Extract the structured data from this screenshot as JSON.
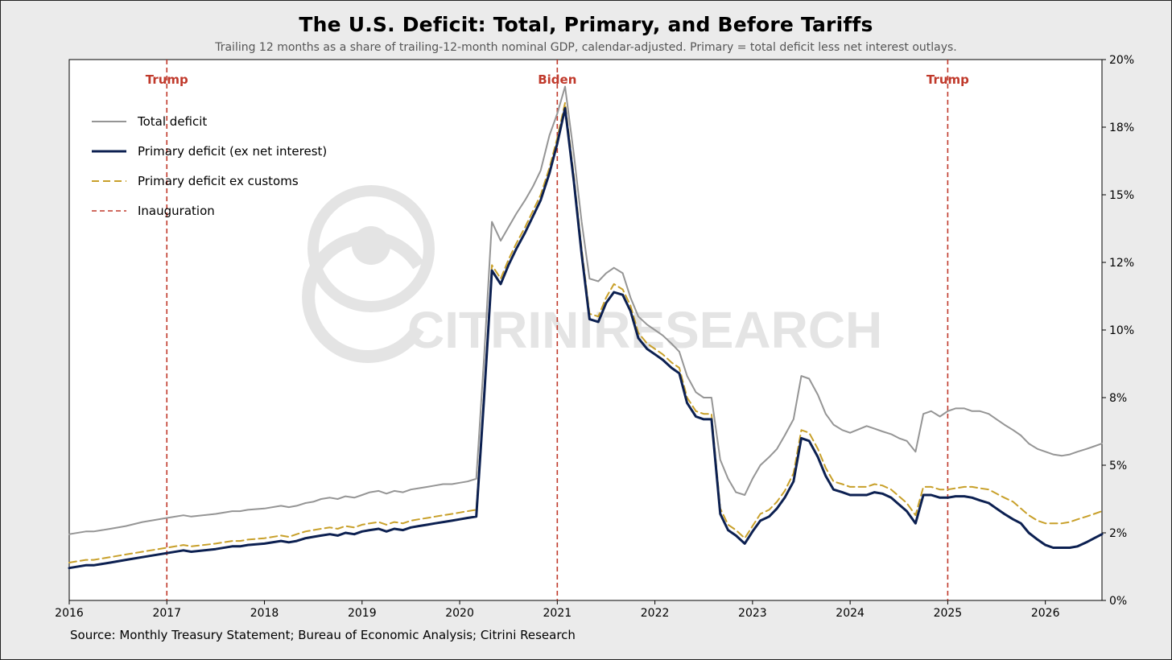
{
  "title": "The U.S. Deficit: Total, Primary, and Before Tariffs",
  "subtitle": "Trailing 12 months as a share of trailing-12-month nominal GDP, calendar-adjusted. Primary = total deficit less net interest outlays.",
  "source": "Source: Monthly Treasury Statement; Bureau of Economic Analysis; Citrini Research",
  "watermark": "CITRINIRESEARCH",
  "colors": {
    "total": "#959595",
    "primary": "#0c2051",
    "ex_customs": "#c8a02a",
    "inauguration": "#c0392b"
  },
  "chart_data": {
    "type": "line",
    "xlim": [
      2016.0,
      2026.58
    ],
    "ylim": [
      0,
      20
    ],
    "y_axis_side": "right",
    "x_ticks": [
      "2016",
      "2017",
      "2018",
      "2019",
      "2020",
      "2021",
      "2022",
      "2023",
      "2024",
      "2025",
      "2026"
    ],
    "y_ticks": [
      "0%",
      "2%",
      "5%",
      "8%",
      "10%",
      "12%",
      "15%",
      "18%",
      "20%"
    ],
    "y_tick_values": [
      0,
      2.5,
      5,
      7.5,
      10,
      12.5,
      15,
      17.5,
      20
    ],
    "legend_position": "top-left",
    "vlines": [
      {
        "x": 2017.0,
        "label": "Trump"
      },
      {
        "x": 2021.0,
        "label": "Biden"
      },
      {
        "x": 2025.0,
        "label": "Trump"
      }
    ],
    "series": [
      {
        "name": "Total deficit",
        "style": "solid",
        "x": [
          2016.0,
          2016.17,
          2016.25,
          2016.42,
          2016.58,
          2016.75,
          2017.0,
          2017.17,
          2017.25,
          2017.5,
          2017.67,
          2017.75,
          2017.83,
          2018.0,
          2018.17,
          2018.25,
          2018.33,
          2018.42,
          2018.5,
          2018.58,
          2018.67,
          2018.75,
          2018.83,
          2018.92,
          2019.0,
          2019.08,
          2019.17,
          2019.25,
          2019.33,
          2019.42,
          2019.5,
          2019.58,
          2019.67,
          2019.75,
          2019.83,
          2019.92,
          2020.0,
          2020.08,
          2020.17,
          2020.25,
          2020.33,
          2020.42,
          2020.5,
          2020.58,
          2020.67,
          2020.75,
          2020.83,
          2020.92,
          2021.0,
          2021.08,
          2021.17,
          2021.25,
          2021.33,
          2021.42,
          2021.5,
          2021.58,
          2021.67,
          2021.75,
          2021.83,
          2021.92,
          2022.0,
          2022.08,
          2022.17,
          2022.25,
          2022.33,
          2022.42,
          2022.5,
          2022.58,
          2022.67,
          2022.75,
          2022.83,
          2022.92,
          2023.0,
          2023.08,
          2023.17,
          2023.25,
          2023.33,
          2023.42,
          2023.5,
          2023.58,
          2023.67,
          2023.75,
          2023.83,
          2023.92,
          2024.0,
          2024.17,
          2024.25,
          2024.33,
          2024.42,
          2024.5,
          2024.58,
          2024.67,
          2024.75,
          2024.83,
          2024.92,
          2025.0,
          2025.08,
          2025.17,
          2025.25,
          2025.33,
          2025.42,
          2025.5,
          2025.58,
          2025.67,
          2025.75,
          2025.83,
          2025.92,
          2026.0,
          2026.08,
          2026.17,
          2026.25,
          2026.33,
          2026.42,
          2026.5,
          2026.58
        ],
        "values": [
          2.45,
          2.55,
          2.55,
          2.65,
          2.75,
          2.9,
          3.05,
          3.15,
          3.1,
          3.2,
          3.3,
          3.3,
          3.35,
          3.4,
          3.5,
          3.45,
          3.5,
          3.6,
          3.65,
          3.75,
          3.8,
          3.75,
          3.85,
          3.8,
          3.9,
          4.0,
          4.05,
          3.95,
          4.05,
          4.0,
          4.1,
          4.15,
          4.2,
          4.25,
          4.3,
          4.3,
          4.35,
          4.4,
          4.5,
          9.0,
          14.0,
          13.3,
          13.8,
          14.3,
          14.8,
          15.3,
          15.9,
          17.2,
          18.0,
          19.0,
          16.5,
          14.0,
          11.9,
          11.8,
          12.1,
          12.3,
          12.1,
          11.2,
          10.5,
          10.2,
          10.0,
          9.8,
          9.5,
          9.2,
          8.3,
          7.7,
          7.5,
          7.5,
          5.2,
          4.5,
          4.0,
          3.9,
          4.5,
          5.0,
          5.3,
          5.6,
          6.1,
          6.7,
          8.3,
          8.2,
          7.6,
          6.9,
          6.5,
          6.3,
          6.2,
          6.45,
          6.35,
          6.25,
          6.15,
          6.0,
          5.9,
          5.5,
          6.9,
          7.0,
          6.8,
          7.0,
          7.1,
          7.1,
          7.0,
          7.0,
          6.9,
          6.7,
          6.5,
          6.3,
          6.1,
          5.8,
          5.6,
          5.5,
          5.4,
          5.35,
          5.4,
          5.5,
          5.6,
          5.7,
          5.8
        ]
      },
      {
        "name": "Primary deficit (ex net interest)",
        "style": "solid-bold",
        "x": [
          2016.0,
          2016.17,
          2016.25,
          2016.42,
          2016.58,
          2016.75,
          2017.0,
          2017.17,
          2017.25,
          2017.5,
          2017.67,
          2017.75,
          2017.83,
          2018.0,
          2018.17,
          2018.25,
          2018.33,
          2018.42,
          2018.5,
          2018.58,
          2018.67,
          2018.75,
          2018.83,
          2018.92,
          2019.0,
          2019.08,
          2019.17,
          2019.25,
          2019.33,
          2019.42,
          2019.5,
          2019.58,
          2019.67,
          2019.75,
          2019.83,
          2019.92,
          2020.0,
          2020.08,
          2020.17,
          2020.25,
          2020.33,
          2020.42,
          2020.5,
          2020.58,
          2020.67,
          2020.75,
          2020.83,
          2020.92,
          2021.0,
          2021.08,
          2021.17,
          2021.25,
          2021.33,
          2021.42,
          2021.5,
          2021.58,
          2021.67,
          2021.75,
          2021.83,
          2021.92,
          2022.0,
          2022.08,
          2022.17,
          2022.25,
          2022.33,
          2022.42,
          2022.5,
          2022.58,
          2022.67,
          2022.75,
          2022.83,
          2022.92,
          2023.0,
          2023.08,
          2023.17,
          2023.25,
          2023.33,
          2023.42,
          2023.5,
          2023.58,
          2023.67,
          2023.75,
          2023.83,
          2023.92,
          2024.0,
          2024.17,
          2024.25,
          2024.33,
          2024.42,
          2024.5,
          2024.58,
          2024.67,
          2024.75,
          2024.83,
          2024.92,
          2025.0,
          2025.08,
          2025.17,
          2025.25,
          2025.33,
          2025.42,
          2025.5,
          2025.58,
          2025.67,
          2025.75,
          2025.83,
          2025.92,
          2026.0,
          2026.08,
          2026.17,
          2026.25,
          2026.33,
          2026.42,
          2026.5,
          2026.58
        ],
        "values": [
          1.2,
          1.3,
          1.3,
          1.4,
          1.5,
          1.6,
          1.75,
          1.85,
          1.8,
          1.9,
          2.0,
          2.0,
          2.05,
          2.1,
          2.2,
          2.15,
          2.2,
          2.3,
          2.35,
          2.4,
          2.45,
          2.4,
          2.5,
          2.45,
          2.55,
          2.6,
          2.65,
          2.55,
          2.65,
          2.6,
          2.7,
          2.75,
          2.8,
          2.85,
          2.9,
          2.95,
          3.0,
          3.05,
          3.1,
          7.5,
          12.2,
          11.7,
          12.4,
          13.0,
          13.6,
          14.2,
          14.8,
          15.8,
          16.9,
          18.2,
          15.5,
          12.8,
          10.4,
          10.3,
          11.0,
          11.4,
          11.3,
          10.7,
          9.7,
          9.3,
          9.1,
          8.9,
          8.6,
          8.4,
          7.3,
          6.8,
          6.7,
          6.7,
          3.2,
          2.6,
          2.4,
          2.1,
          2.55,
          2.95,
          3.1,
          3.4,
          3.8,
          4.4,
          6.0,
          5.9,
          5.3,
          4.6,
          4.1,
          4.0,
          3.9,
          3.9,
          4.0,
          3.95,
          3.8,
          3.55,
          3.3,
          2.85,
          3.9,
          3.9,
          3.8,
          3.8,
          3.85,
          3.85,
          3.8,
          3.7,
          3.6,
          3.4,
          3.2,
          3.0,
          2.85,
          2.5,
          2.25,
          2.05,
          1.95,
          1.95,
          1.95,
          2.0,
          2.15,
          2.3,
          2.45
        ]
      },
      {
        "name": "Primary deficit ex customs",
        "style": "dashed",
        "x": [
          2016.0,
          2016.17,
          2016.25,
          2016.42,
          2016.58,
          2016.75,
          2017.0,
          2017.17,
          2017.25,
          2017.5,
          2017.67,
          2017.75,
          2017.83,
          2018.0,
          2018.17,
          2018.25,
          2018.33,
          2018.42,
          2018.5,
          2018.58,
          2018.67,
          2018.75,
          2018.83,
          2018.92,
          2019.0,
          2019.08,
          2019.17,
          2019.25,
          2019.33,
          2019.42,
          2019.5,
          2019.58,
          2019.67,
          2019.75,
          2019.83,
          2019.92,
          2020.0,
          2020.08,
          2020.17,
          2020.25,
          2020.33,
          2020.42,
          2020.5,
          2020.58,
          2020.67,
          2020.75,
          2020.83,
          2020.92,
          2021.0,
          2021.08,
          2021.17,
          2021.25,
          2021.33,
          2021.42,
          2021.5,
          2021.58,
          2021.67,
          2021.75,
          2021.83,
          2021.92,
          2022.0,
          2022.08,
          2022.17,
          2022.25,
          2022.33,
          2022.42,
          2022.5,
          2022.58,
          2022.67,
          2022.75,
          2022.83,
          2022.92,
          2023.0,
          2023.08,
          2023.17,
          2023.25,
          2023.33,
          2023.42,
          2023.5,
          2023.58,
          2023.67,
          2023.75,
          2023.83,
          2023.92,
          2024.0,
          2024.17,
          2024.25,
          2024.33,
          2024.42,
          2024.5,
          2024.58,
          2024.67,
          2024.75,
          2024.83,
          2024.92,
          2025.0,
          2025.08,
          2025.17,
          2025.25,
          2025.33,
          2025.42,
          2025.5,
          2025.58,
          2025.67,
          2025.75,
          2025.83,
          2025.92,
          2026.0,
          2026.08,
          2026.17,
          2026.25,
          2026.33,
          2026.42,
          2026.5,
          2026.58
        ],
        "values": [
          1.4,
          1.5,
          1.5,
          1.6,
          1.7,
          1.8,
          1.95,
          2.05,
          2.0,
          2.1,
          2.2,
          2.2,
          2.25,
          2.3,
          2.4,
          2.35,
          2.45,
          2.55,
          2.6,
          2.65,
          2.7,
          2.65,
          2.75,
          2.7,
          2.8,
          2.85,
          2.9,
          2.8,
          2.9,
          2.85,
          2.95,
          3.0,
          3.05,
          3.1,
          3.15,
          3.2,
          3.25,
          3.3,
          3.35,
          7.7,
          12.4,
          11.9,
          12.6,
          13.2,
          13.8,
          14.4,
          15.0,
          16.0,
          17.1,
          18.4,
          15.7,
          13.0,
          10.6,
          10.5,
          11.2,
          11.7,
          11.5,
          10.9,
          9.9,
          9.5,
          9.3,
          9.1,
          8.8,
          8.6,
          7.5,
          7.0,
          6.9,
          6.9,
          3.4,
          2.8,
          2.6,
          2.3,
          2.75,
          3.2,
          3.35,
          3.65,
          4.05,
          4.7,
          6.3,
          6.2,
          5.6,
          4.9,
          4.4,
          4.3,
          4.2,
          4.2,
          4.3,
          4.25,
          4.1,
          3.85,
          3.6,
          3.15,
          4.2,
          4.2,
          4.1,
          4.1,
          4.15,
          4.2,
          4.2,
          4.15,
          4.1,
          3.95,
          3.8,
          3.65,
          3.4,
          3.15,
          2.95,
          2.85,
          2.85,
          2.85,
          2.9,
          3.0,
          3.1,
          3.2,
          3.3
        ]
      },
      {
        "name": "Inauguration",
        "style": "dashed-vline"
      }
    ]
  }
}
